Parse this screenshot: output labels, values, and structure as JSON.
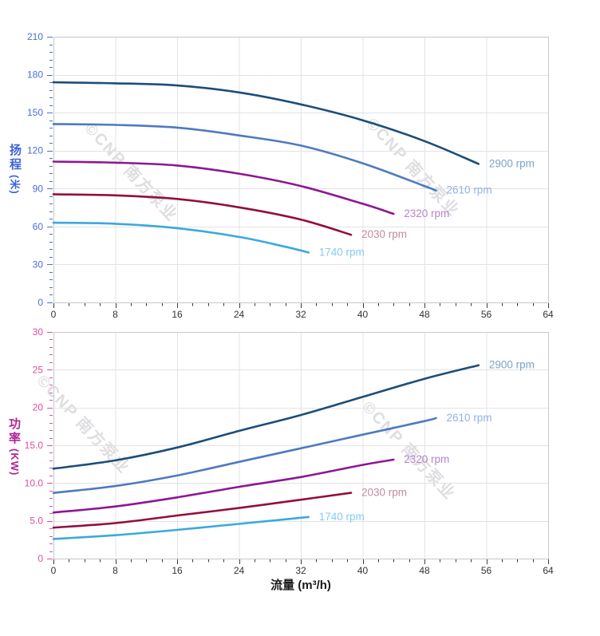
{
  "watermark": {
    "text": "©CNP 南方泵业"
  },
  "chart_data": [
    {
      "type": "line",
      "name": "head-vs-flow",
      "title": "",
      "xlabel": "",
      "ylabel": "扬程",
      "ylabel_unit": "(米)",
      "xlim": [
        0,
        64
      ],
      "ylim": [
        0,
        210
      ],
      "x_major": 8,
      "x_minor": 2,
      "y_major": 30,
      "y_minor": 6,
      "x_tick_labels": [
        "0",
        "8",
        "16",
        "24",
        "32",
        "40",
        "48",
        "56",
        "64"
      ],
      "y_tick_labels": [
        "0",
        "30",
        "60",
        "90",
        "120",
        "150",
        "180",
        "210"
      ],
      "axis_color": "#4a6edb",
      "title_color": "#3f63d8",
      "grid": true,
      "legend_position": "curve-end-labels",
      "series": [
        {
          "name": "2900 rpm",
          "color": "#1c4e79",
          "label_color": "#7ba3cb",
          "points": [
            [
              0,
              174
            ],
            [
              8,
              173.2
            ],
            [
              16,
              171.5
            ],
            [
              24,
              166
            ],
            [
              32,
              156.5
            ],
            [
              40,
              144
            ],
            [
              48,
              127.5
            ],
            [
              55,
              109.5
            ]
          ]
        },
        {
          "name": "2610 rpm",
          "color": "#4e7ac0",
          "label_color": "#8fb3e2",
          "points": [
            [
              0,
              141
            ],
            [
              8,
              140.3
            ],
            [
              16,
              138.2
            ],
            [
              24,
              132
            ],
            [
              32,
              124
            ],
            [
              40,
              110
            ],
            [
              48,
              92
            ],
            [
              49.5,
              88.5
            ]
          ]
        },
        {
          "name": "2320 rpm",
          "color": "#8d1794",
          "label_color": "#b584cc",
          "points": [
            [
              0,
              111.3
            ],
            [
              8,
              110.5
            ],
            [
              16,
              108.2
            ],
            [
              24,
              101.8
            ],
            [
              32,
              92
            ],
            [
              40,
              78
            ],
            [
              44,
              70
            ]
          ]
        },
        {
          "name": "2030 rpm",
          "color": "#920f3d",
          "label_color": "#c28ba3",
          "points": [
            [
              0,
              85.5
            ],
            [
              8,
              84.6
            ],
            [
              16,
              81.8
            ],
            [
              24,
              75.2
            ],
            [
              32,
              65.5
            ],
            [
              38.5,
              53.5
            ]
          ]
        },
        {
          "name": "1740 rpm",
          "color": "#3aa9dd",
          "label_color": "#84ccee",
          "points": [
            [
              0,
              63
            ],
            [
              8,
              62.2
            ],
            [
              16,
              58.7
            ],
            [
              24,
              51.8
            ],
            [
              30,
              44
            ],
            [
              33,
              39.5
            ]
          ]
        }
      ]
    },
    {
      "type": "line",
      "name": "power-vs-flow",
      "title": "",
      "xlabel": "流量 (m³/h)",
      "ylabel": "功率",
      "ylabel_unit": "(KW)",
      "xlim": [
        0,
        64
      ],
      "ylim": [
        0,
        30
      ],
      "x_major": 8,
      "x_minor": 2,
      "y_major": 5,
      "y_minor": 1,
      "x_tick_labels": [
        "0",
        "8",
        "16",
        "24",
        "32",
        "40",
        "48",
        "56",
        "64"
      ],
      "y_tick_labels": [
        "0",
        "5.0",
        "10.0",
        "15.0",
        "20",
        "25",
        "30"
      ],
      "axis_color": "#e04da0",
      "title_color": "#b02596",
      "grid": true,
      "legend_position": "curve-end-labels",
      "series": [
        {
          "name": "2900 rpm",
          "color": "#1c4e79",
          "label_color": "#7ba3cb",
          "points": [
            [
              0,
              11.9
            ],
            [
              8,
              13
            ],
            [
              16,
              14.7
            ],
            [
              24,
              16.9
            ],
            [
              32,
              19
            ],
            [
              40,
              21.4
            ],
            [
              48,
              23.8
            ],
            [
              55,
              25.6
            ]
          ]
        },
        {
          "name": "2610 rpm",
          "color": "#4e7ac0",
          "label_color": "#8fb3e2",
          "points": [
            [
              0,
              8.7
            ],
            [
              8,
              9.6
            ],
            [
              16,
              11
            ],
            [
              24,
              12.8
            ],
            [
              32,
              14.6
            ],
            [
              40,
              16.4
            ],
            [
              48,
              18.2
            ],
            [
              49.5,
              18.6
            ]
          ]
        },
        {
          "name": "2320 rpm",
          "color": "#8d1794",
          "label_color": "#b584cc",
          "points": [
            [
              0,
              6.1
            ],
            [
              8,
              6.9
            ],
            [
              16,
              8.1
            ],
            [
              24,
              9.5
            ],
            [
              32,
              10.8
            ],
            [
              40,
              12.4
            ],
            [
              44,
              13.1
            ]
          ]
        },
        {
          "name": "2030 rpm",
          "color": "#920f3d",
          "label_color": "#c28ba3",
          "points": [
            [
              0,
              4.1
            ],
            [
              8,
              4.7
            ],
            [
              16,
              5.7
            ],
            [
              24,
              6.7
            ],
            [
              32,
              7.8
            ],
            [
              38.5,
              8.7
            ]
          ]
        },
        {
          "name": "1740 rpm",
          "color": "#3aa9dd",
          "label_color": "#84ccee",
          "points": [
            [
              0,
              2.6
            ],
            [
              8,
              3.1
            ],
            [
              16,
              3.8
            ],
            [
              24,
              4.6
            ],
            [
              30,
              5.2
            ],
            [
              33,
              5.5
            ]
          ]
        }
      ]
    }
  ]
}
